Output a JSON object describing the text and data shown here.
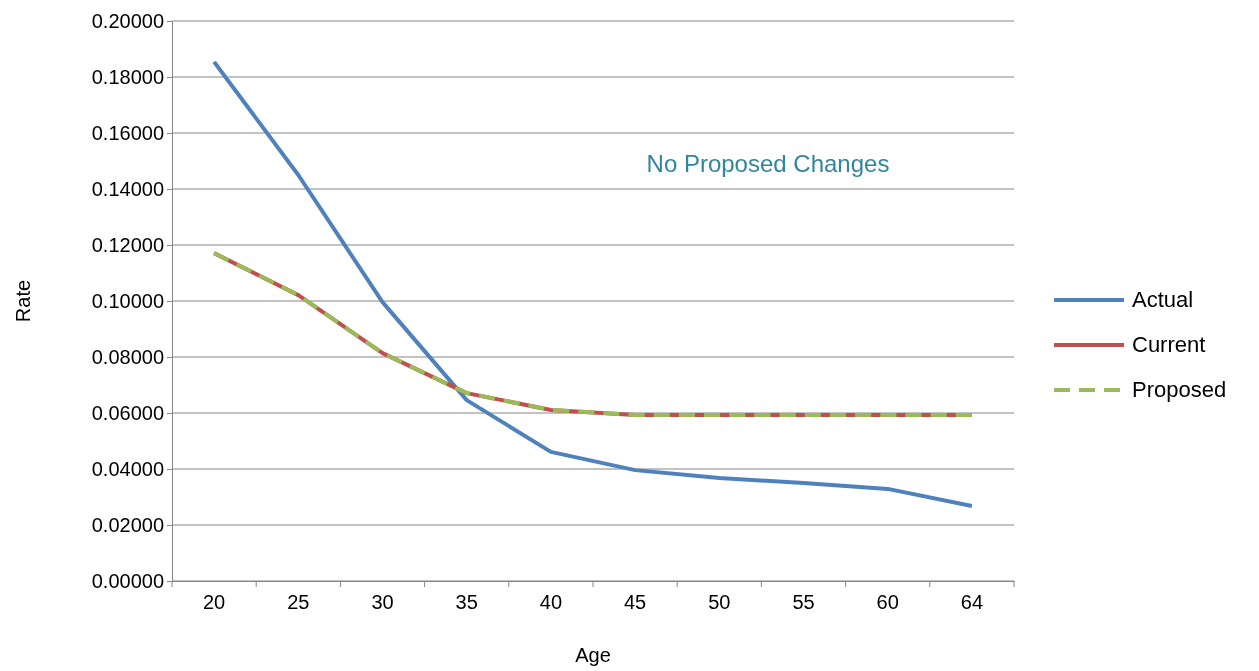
{
  "chart_data": {
    "type": "line",
    "xlabel": "Age",
    "ylabel": "Rate",
    "categories": [
      "20",
      "25",
      "30",
      "35",
      "40",
      "45",
      "50",
      "55",
      "60",
      "64"
    ],
    "series": [
      {
        "name": "Actual",
        "color": "#4f81bd",
        "line_style": "solid",
        "values": [
          0.1854,
          0.145,
          0.0996,
          0.0646,
          0.0461,
          0.0396,
          0.0368,
          0.035,
          0.0329,
          0.0268
        ]
      },
      {
        "name": "Current",
        "color": "#c0504d",
        "line_style": "solid",
        "values": [
          0.1171,
          0.1021,
          0.0814,
          0.0671,
          0.0611,
          0.0593,
          0.0593,
          0.0593,
          0.0593,
          0.0593
        ]
      },
      {
        "name": "Proposed",
        "color": "#9bbb59",
        "line_style": "dashed",
        "values": [
          0.1171,
          0.1021,
          0.0814,
          0.0671,
          0.0611,
          0.0593,
          0.0593,
          0.0593,
          0.0593,
          0.0593
        ]
      }
    ],
    "ylim": [
      0,
      0.2
    ],
    "yticks": [
      {
        "value": 0,
        "label": "0.00000"
      },
      {
        "value": 0.02,
        "label": "0.02000"
      },
      {
        "value": 0.04,
        "label": "0.04000"
      },
      {
        "value": 0.06,
        "label": "0.06000"
      },
      {
        "value": 0.08,
        "label": "0.08000"
      },
      {
        "value": 0.1,
        "label": "0.10000"
      },
      {
        "value": 0.12,
        "label": "0.12000"
      },
      {
        "value": 0.14,
        "label": "0.14000"
      },
      {
        "value": 0.16,
        "label": "0.16000"
      },
      {
        "value": 0.18,
        "label": "0.18000"
      },
      {
        "value": 0.2,
        "label": "0.20000"
      }
    ],
    "grid": "y",
    "legend": "right",
    "marker": "none",
    "annotations": [
      "No Proposed Changes"
    ]
  }
}
